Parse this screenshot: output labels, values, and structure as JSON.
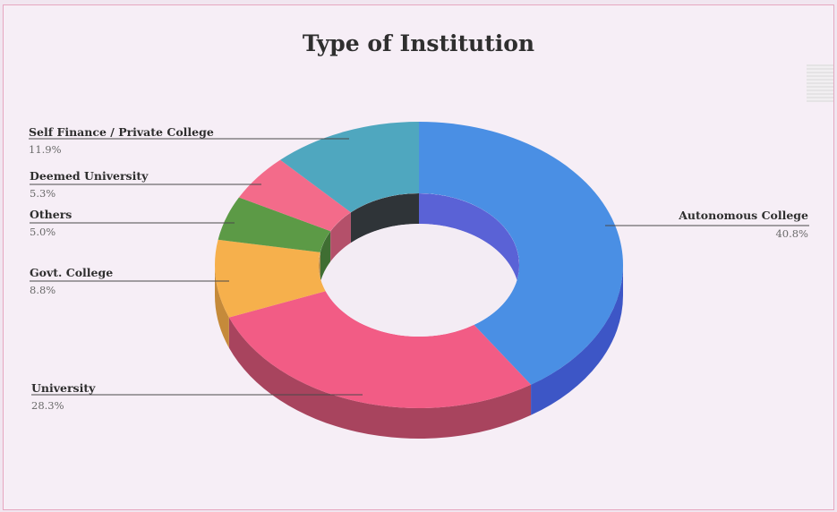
{
  "chart_data": {
    "type": "pie",
    "title": "Type of Institution",
    "labels": [
      "Autonomous College",
      "University",
      "Govt. College",
      "Others",
      "Deemed University",
      "Self Finance / Private College"
    ],
    "values": [
      40.8,
      28.3,
      8.8,
      5.0,
      5.3,
      11.9
    ],
    "value_labels": [
      "40.8%",
      "28.3%",
      "8.8%",
      "5.0%",
      "5.3%",
      "11.9%"
    ],
    "colors": [
      "#4a8fe4",
      "#f25c85",
      "#f6b04c",
      "#5c9a46",
      "#f36b8a",
      "#4fa7bf"
    ],
    "side_colors": [
      "#3d56c6",
      "#a8445e",
      "#c58a3a",
      "#3f6e32",
      "#b4506a",
      "#3b7c8c"
    ],
    "donut": true,
    "style_3d": true,
    "legend": "callout-labels"
  }
}
